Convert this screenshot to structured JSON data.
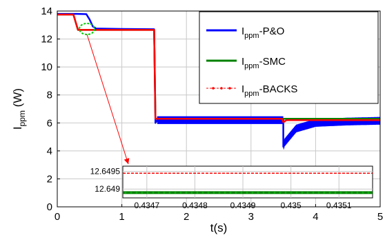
{
  "chart_data": {
    "type": "line",
    "xlabel": "t(s)",
    "ylabel_main": "I",
    "ylabel_sub": "ppm",
    "ylabel_unit": " (W)",
    "xlim": [
      0,
      5
    ],
    "ylim": [
      0,
      14
    ],
    "x_ticks": [
      "0",
      "1",
      "2",
      "3",
      "4",
      "5"
    ],
    "y_ticks": [
      "0",
      "2",
      "4",
      "6",
      "8",
      "10",
      "12",
      "14"
    ],
    "grid": true,
    "legend_position": "top-right",
    "colors": {
      "po": "#0000ff",
      "smc": "#008000",
      "backs": "#ff0000",
      "annotation": "#ff0000",
      "highlight": "#00cc00"
    },
    "series": [
      {
        "key": "po",
        "legend_main": "I",
        "legend_sub": "ppm",
        "legend_rest": "-P&O",
        "points": [
          [
            0,
            13.8
          ],
          [
            0.3,
            13.8
          ],
          [
            0.45,
            13.78
          ],
          [
            0.5,
            13.4
          ],
          [
            0.55,
            12.9
          ],
          [
            0.6,
            12.75
          ],
          [
            1.0,
            12.72
          ],
          [
            1.5,
            12.7
          ],
          [
            1.52,
            6.0
          ],
          [
            1.55,
            6.2
          ],
          [
            3.5,
            6.2
          ],
          [
            3.5,
            4.3
          ],
          [
            3.52,
            4.6
          ],
          [
            3.7,
            5.6
          ],
          [
            4.0,
            6.0
          ],
          [
            4.5,
            6.1
          ],
          [
            5.0,
            6.15
          ]
        ],
        "band": {
          "from": 1.55,
          "to": 5.0,
          "amplitude": 0.55
        }
      },
      {
        "key": "smc",
        "legend_main": "I",
        "legend_sub": "ppm",
        "legend_rest": "-SMC",
        "points": [
          [
            0,
            13.75
          ],
          [
            0.25,
            13.75
          ],
          [
            0.32,
            12.65
          ],
          [
            1.5,
            12.65
          ],
          [
            1.52,
            6.3
          ],
          [
            5.0,
            6.3
          ]
        ]
      },
      {
        "key": "backs",
        "legend_main": "I",
        "legend_sub": "ppm",
        "legend_rest": "-BACKS",
        "points": [
          [
            0,
            13.75
          ],
          [
            0.25,
            13.75
          ],
          [
            0.32,
            12.65
          ],
          [
            1.5,
            12.65
          ],
          [
            1.52,
            6.3
          ],
          [
            3.48,
            6.3
          ],
          [
            3.5,
            6.05
          ],
          [
            3.55,
            6.2
          ],
          [
            5.0,
            6.2
          ]
        ]
      }
    ],
    "inset": {
      "xlim": [
        0.43465,
        0.43517
      ],
      "ylim": [
        12.64875,
        12.64965
      ],
      "x_ticks": [
        "0.4347",
        "0.4348",
        "0.4349",
        "0.435",
        "0.4351"
      ],
      "x_tick_values": [
        0.4347,
        0.4348,
        0.4349,
        0.435,
        0.4351
      ],
      "y_ticks": [
        "12.6495",
        "12.649"
      ],
      "y_tick_values": [
        12.6495,
        12.649
      ],
      "backs_level": 12.64945,
      "smc_level": 12.6489
    },
    "zoom_marker": {
      "x": 0.46,
      "y": 12.72
    }
  }
}
